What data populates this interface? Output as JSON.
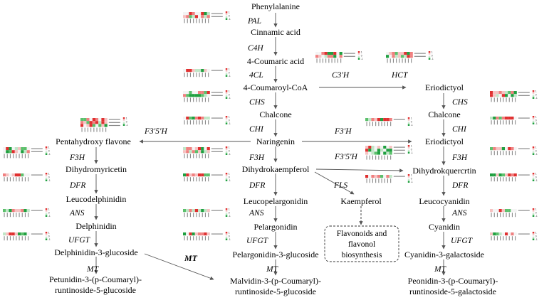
{
  "compounds": {
    "phenylalanine": "Phenylalanine",
    "cinnamic_acid": "Cinnamic acid",
    "coumaric_acid": "4-Coumaric acid",
    "coumaroyl_coa": "4-Coumaroyl-CoA",
    "eriodictyol": "Eriodictyol",
    "chalcone_center": "Chalcone",
    "chalcone_right": "Chalcone",
    "naringenin": "Naringenin",
    "pentahydroxy_flavone": "Pentahydroxy flavone",
    "eriodictyol_right": "Eriodictyol",
    "dihydromyricetin": "Dihydromyricetin",
    "dihydrokaempferol": "Dihydrokaempferol",
    "dihydroquercetin": "Dihydrokquercrtin",
    "leucodelphinidin": "Leucodelphinidin",
    "leucopelargonidin": "Leucopelargonidin",
    "kaempferol": "Kaempferol",
    "leucocyanidin": "Leucocyanidin",
    "delphinidin": "Delphinidin",
    "pelargonidin": "Pelargonidin",
    "cyanidin": "Cyanidin",
    "delphinidin_glucoside": "Delphinidin-3-glucoside",
    "pelargonidin_glucoside": "Pelargonidin-3-glucoside",
    "cyanidin_galactoside": "Cyanidin-3-galactoside",
    "petunidin_line1": "Petunidin-3-(p-Coumaryl)-",
    "petunidin_line2": "runtinoside-5-glucoside",
    "malvidin_line1": "Malvidin-3-(p-Coumaryl)-",
    "malvidin_line2": "runtinoside-5-glucoside",
    "peonidin_line1": "Peonidin-3-(p-Coumaryl)-",
    "peonidin_line2": "runtinoside-5-galactoside"
  },
  "enzymes": {
    "pal": "PAL",
    "c4h": "C4H",
    "c3h": "C3'H",
    "hct": "HCT",
    "cl4": "4CL",
    "chs_center": "CHS",
    "chs_right": "CHS",
    "chi_center": "CHI",
    "chi_right": "CHI",
    "f35h_left": "F3'5'H",
    "f3h_top_right": "F3'H",
    "f35h_right": "F3'5'H",
    "f3h_left": "F3H",
    "f3h_center": "F3H",
    "f3h_right": "F3H",
    "dfr_left": "DFR",
    "dfr_center": "DFR",
    "dfr_right": "DFR",
    "fls": "FLS",
    "ans_left": "ANS",
    "ans_center": "ANS",
    "ans_right": "ANS",
    "ufgt_left": "UFGT",
    "ufgt_center": "UFGT",
    "ufgt_right": "UFGT",
    "mt_bold": "MT",
    "mt_left": "MT",
    "mt_center": "MT",
    "mt_right": "MT"
  },
  "flavonoids_box": {
    "line1": "Flavonoids and",
    "line2": "flavonol",
    "line3": "biosynthesis"
  },
  "heatmap_colors": {
    "high": "#e03030",
    "mid": "#f4f4f4",
    "low": "#1fa040"
  },
  "heatmap_colorbar_ticks": [
    "1",
    "0",
    "-1"
  ]
}
